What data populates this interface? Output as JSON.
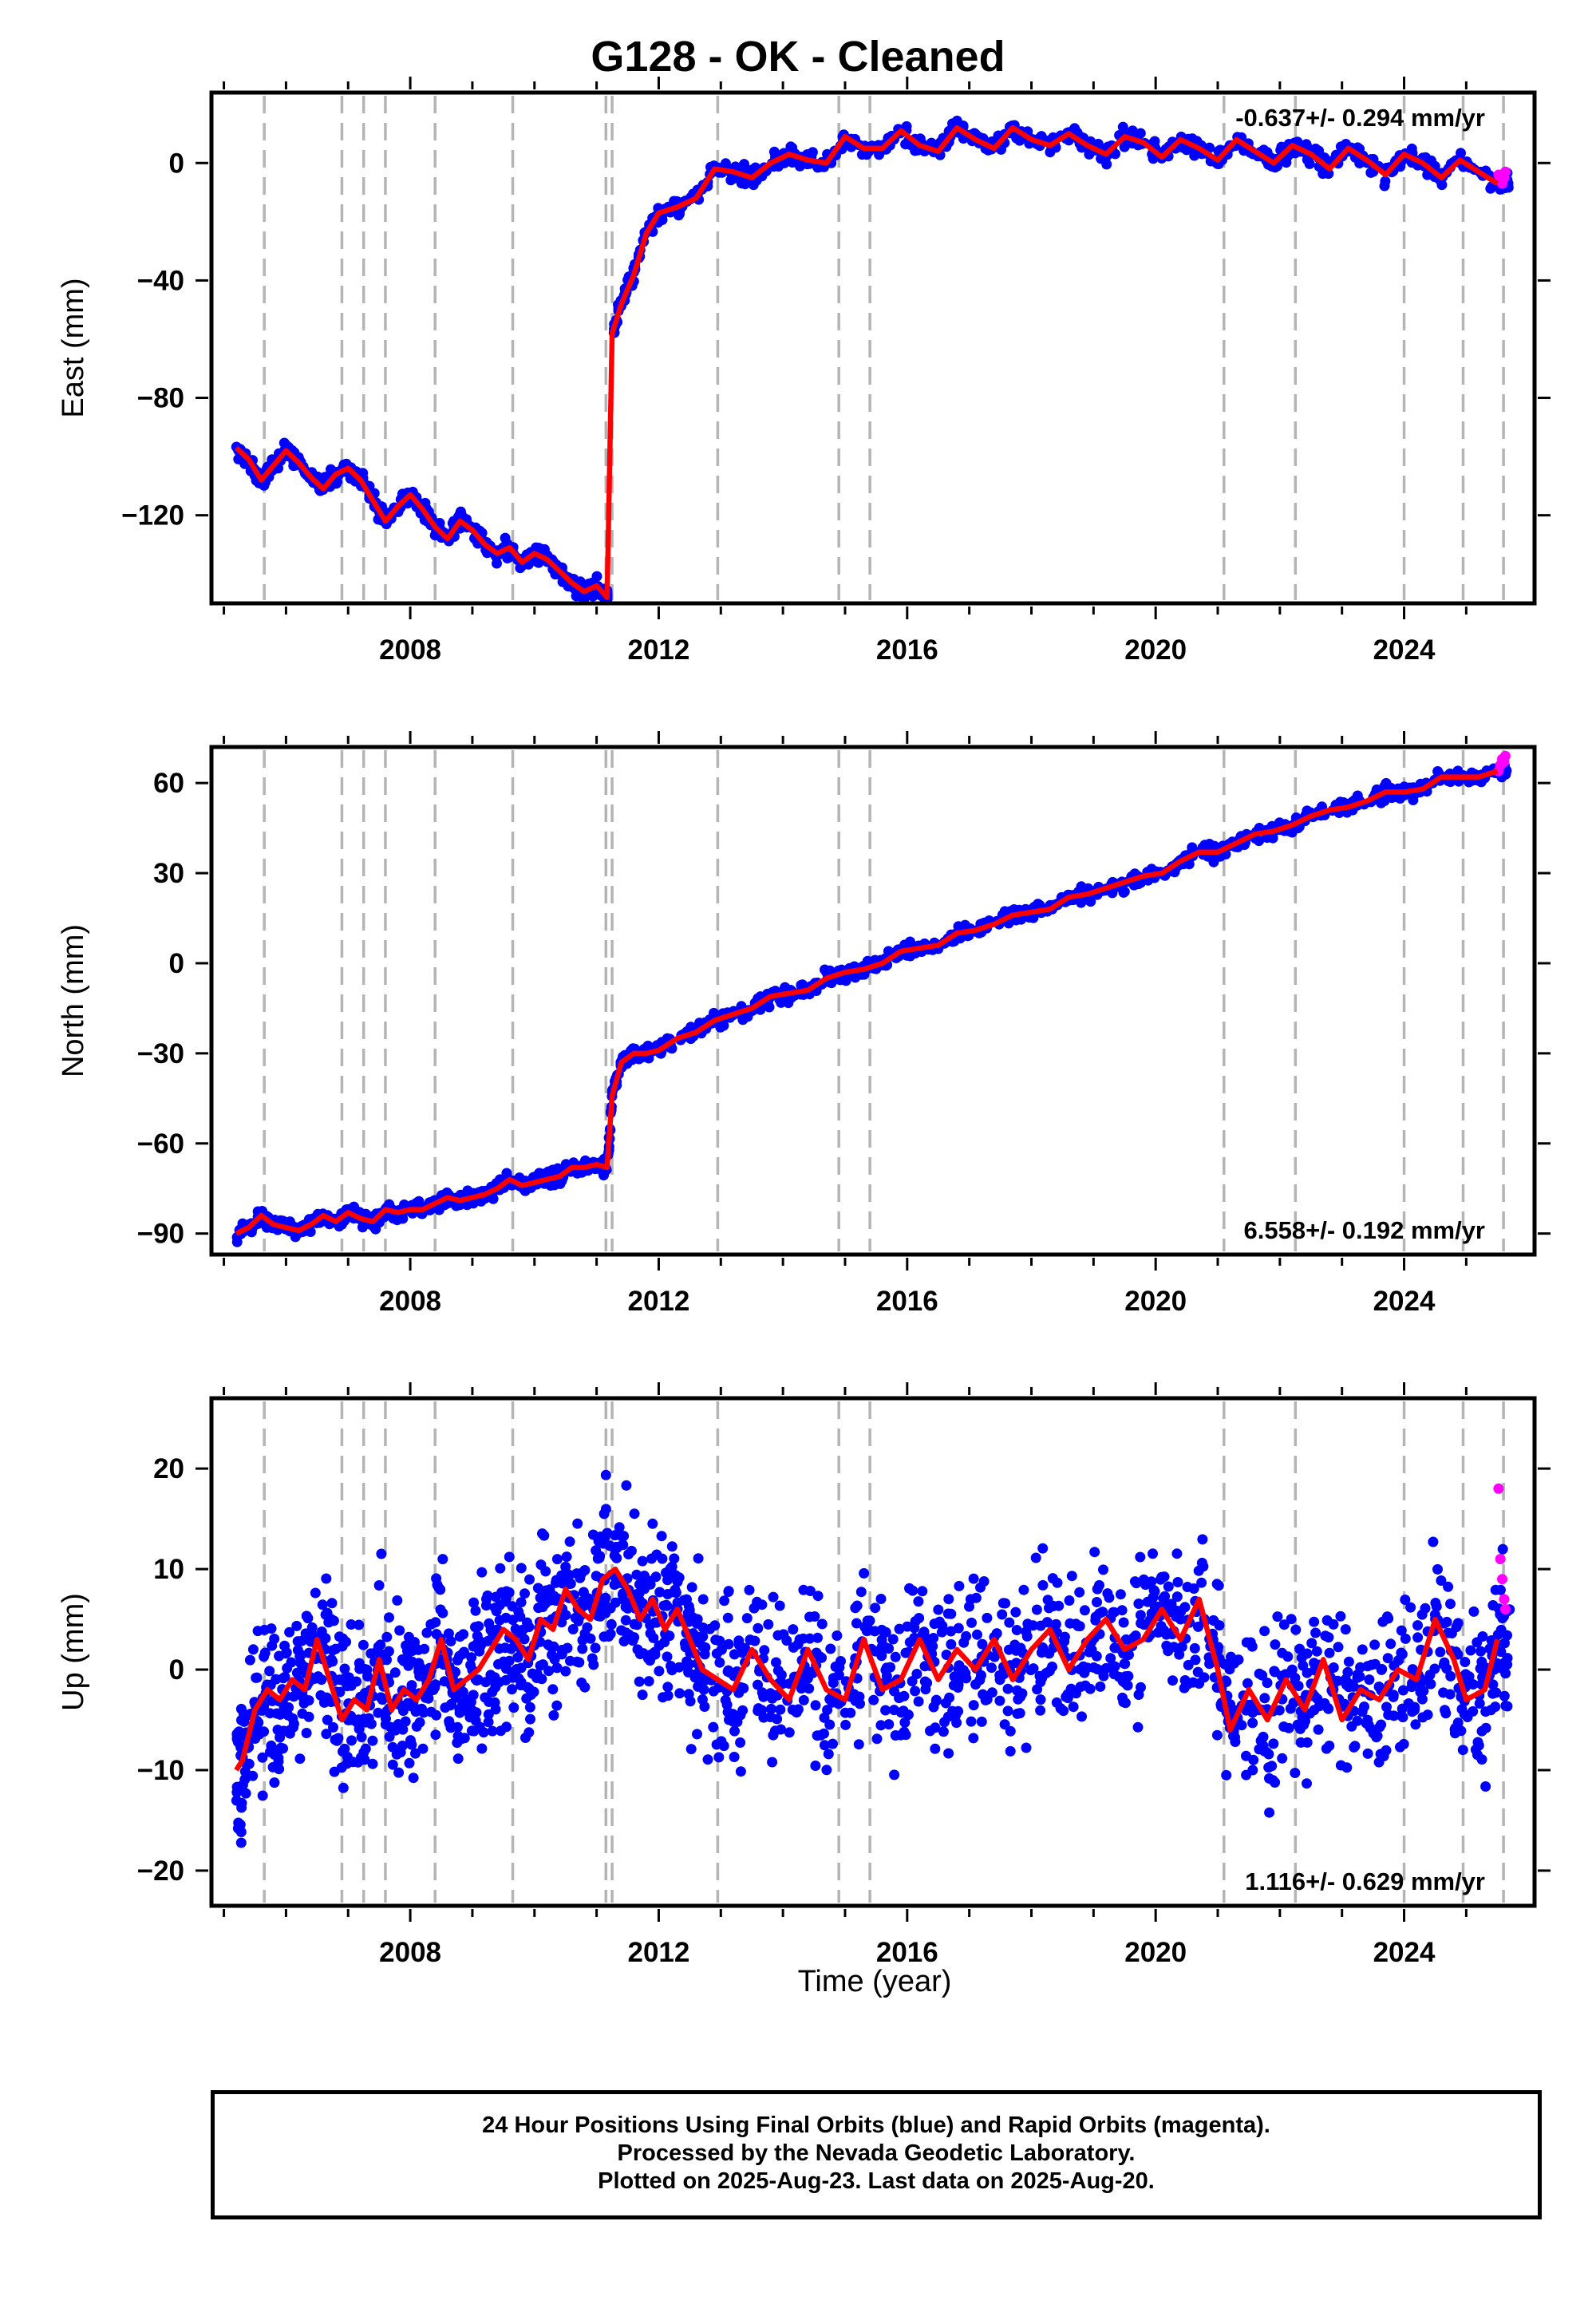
{
  "figure": {
    "title": "G128  - OK - Cleaned",
    "xlabel": "Time (year)",
    "footer": [
      "24 Hour Positions Using Final Orbits (blue) and Rapid Orbits (magenta).",
      "Processed by the Nevada Geodetic Laboratory.",
      "Plotted on 2025-Aug-23. Last data on 2025-Aug-20."
    ]
  },
  "colors": {
    "final_orbits": "#0000ff",
    "rapid_orbits": "#ff00ff",
    "model": "#ff0000",
    "event_lines": "#b4b4b4"
  },
  "chart_data": [
    {
      "type": "scatter",
      "panel": "east",
      "ylabel": "East (mm)",
      "rate_label": "-0.637+/- 0.294 mm/yr",
      "rate_position": "top-right",
      "xlim": [
        2004.8,
        2026.1
      ],
      "ylim": [
        -150,
        24
      ],
      "xticks": [
        2008,
        2012,
        2016,
        2020,
        2024
      ],
      "yticks": [
        0,
        -40,
        -80,
        -120
      ],
      "event_lines": [
        2005.65,
        2006.9,
        2007.25,
        2007.6,
        2008.4,
        2009.65,
        2011.15,
        2011.25,
        2012.95,
        2014.9,
        2015.4,
        2021.1,
        2022.25,
        2024.0,
        2024.95,
        2025.6
      ],
      "series": [
        {
          "name": "Final Orbits",
          "color": "blue",
          "x": [
            2005.2,
            2005.4,
            2005.6,
            2005.8,
            2006.0,
            2006.2,
            2006.4,
            2006.6,
            2006.8,
            2007.0,
            2007.2,
            2007.4,
            2007.6,
            2007.8,
            2008.0,
            2008.2,
            2008.4,
            2008.6,
            2008.8,
            2009.0,
            2009.2,
            2009.4,
            2009.6,
            2009.8,
            2010.0,
            2010.2,
            2010.4,
            2010.6,
            2010.8,
            2011.0,
            2011.17,
            2011.25,
            2011.4,
            2011.6,
            2011.8,
            2012.0,
            2012.3,
            2012.6,
            2012.9,
            2013.2,
            2013.5,
            2013.8,
            2014.1,
            2014.4,
            2014.7,
            2015.0,
            2015.3,
            2015.6,
            2015.9,
            2016.2,
            2016.5,
            2016.8,
            2017.1,
            2017.4,
            2017.7,
            2018.0,
            2018.3,
            2018.6,
            2018.9,
            2019.2,
            2019.5,
            2019.8,
            2020.1,
            2020.4,
            2020.7,
            2021.0,
            2021.3,
            2021.6,
            2021.9,
            2022.2,
            2022.5,
            2022.8,
            2023.1,
            2023.4,
            2023.7,
            2024.0,
            2024.3,
            2024.6,
            2024.9,
            2025.2,
            2025.5
          ],
          "y": [
            -97,
            -101,
            -108,
            -103,
            -98,
            -102,
            -107,
            -111,
            -106,
            -104,
            -108,
            -115,
            -122,
            -117,
            -113,
            -118,
            -124,
            -128,
            -122,
            -125,
            -130,
            -133,
            -131,
            -136,
            -133,
            -135,
            -139,
            -143,
            -146,
            -144,
            -148,
            -58,
            -48,
            -38,
            -24,
            -17,
            -15,
            -12,
            -2,
            -3,
            -5,
            0,
            3,
            1,
            0,
            9,
            5,
            5,
            11,
            6,
            4,
            12,
            8,
            5,
            12,
            8,
            6,
            10,
            6,
            3,
            9,
            7,
            2,
            8,
            5,
            1,
            8,
            4,
            0,
            6,
            3,
            -2,
            5,
            1,
            -4,
            3,
            0,
            -5,
            1,
            -3,
            -7
          ]
        },
        {
          "name": "Rapid Orbits",
          "color": "magenta",
          "x": [
            2025.52,
            2025.55,
            2025.58,
            2025.61,
            2025.63
          ],
          "y": [
            -4,
            -6,
            -7,
            -5,
            -3
          ]
        }
      ]
    },
    {
      "type": "scatter",
      "panel": "north",
      "ylabel": "North (mm)",
      "rate_label": "6.558+/- 0.192 mm/yr",
      "rate_position": "bottom-right",
      "xlim": [
        2004.8,
        2026.1
      ],
      "ylim": [
        -97,
        72
      ],
      "xticks": [
        2008,
        2012,
        2016,
        2020,
        2024
      ],
      "yticks": [
        60,
        30,
        0,
        -30,
        -60,
        -90
      ],
      "event_lines": [
        2005.65,
        2006.9,
        2007.25,
        2007.6,
        2008.4,
        2009.65,
        2011.15,
        2011.25,
        2012.95,
        2014.9,
        2015.4,
        2021.1,
        2022.25,
        2024.0,
        2024.95,
        2025.6
      ],
      "series": [
        {
          "name": "Final Orbits",
          "color": "blue",
          "x": [
            2005.2,
            2005.4,
            2005.6,
            2005.8,
            2006.0,
            2006.2,
            2006.4,
            2006.6,
            2006.8,
            2007.0,
            2007.2,
            2007.4,
            2007.6,
            2007.8,
            2008.0,
            2008.2,
            2008.4,
            2008.6,
            2008.8,
            2009.0,
            2009.2,
            2009.4,
            2009.6,
            2009.8,
            2010.0,
            2010.2,
            2010.4,
            2010.6,
            2010.8,
            2011.0,
            2011.17,
            2011.25,
            2011.4,
            2011.6,
            2011.8,
            2012.0,
            2012.3,
            2012.6,
            2012.9,
            2013.2,
            2013.5,
            2013.8,
            2014.1,
            2014.4,
            2014.7,
            2015.0,
            2015.3,
            2015.6,
            2015.9,
            2016.2,
            2016.5,
            2016.8,
            2017.1,
            2017.4,
            2017.7,
            2018.0,
            2018.3,
            2018.6,
            2018.9,
            2019.2,
            2019.5,
            2019.8,
            2020.1,
            2020.4,
            2020.7,
            2021.0,
            2021.3,
            2021.6,
            2021.9,
            2022.2,
            2022.5,
            2022.8,
            2023.1,
            2023.4,
            2023.7,
            2024.0,
            2024.3,
            2024.6,
            2024.9,
            2025.2,
            2025.5
          ],
          "y": [
            -90,
            -88,
            -84,
            -87,
            -88,
            -89,
            -87,
            -84,
            -86,
            -83,
            -85,
            -86,
            -82,
            -83,
            -82,
            -82,
            -80,
            -78,
            -79,
            -78,
            -77,
            -75,
            -72,
            -74,
            -73,
            -72,
            -71,
            -68,
            -68,
            -67,
            -68,
            -44,
            -33,
            -30,
            -30,
            -29,
            -25,
            -23,
            -19,
            -17,
            -15,
            -11,
            -10,
            -9,
            -5,
            -3,
            -2,
            0,
            4,
            5,
            6,
            10,
            11,
            13,
            16,
            17,
            18,
            22,
            23,
            25,
            27,
            29,
            30,
            34,
            37,
            37,
            40,
            43,
            44,
            46,
            49,
            51,
            52,
            54,
            57,
            57,
            58,
            62,
            62,
            62,
            64
          ]
        },
        {
          "name": "Rapid Orbits",
          "color": "magenta",
          "x": [
            2025.52,
            2025.55,
            2025.58,
            2025.61,
            2025.63
          ],
          "y": [
            64,
            66,
            68,
            67,
            69
          ]
        }
      ]
    },
    {
      "type": "scatter",
      "panel": "up",
      "ylabel": "Up (mm)",
      "rate_label": "1.116+/- 0.629 mm/yr",
      "rate_position": "bottom-right",
      "xlim": [
        2004.8,
        2026.1
      ],
      "ylim": [
        -23.5,
        27
      ],
      "xticks": [
        2008,
        2012,
        2016,
        2020,
        2024
      ],
      "yticks": [
        20,
        10,
        0,
        -10,
        -20
      ],
      "event_lines": [
        2005.65,
        2006.9,
        2007.25,
        2007.6,
        2008.4,
        2009.65,
        2011.15,
        2011.25,
        2012.95,
        2014.9,
        2015.4,
        2021.1,
        2022.25,
        2024.0,
        2024.95,
        2025.6
      ],
      "series": [
        {
          "name": "Final Orbits",
          "color": "blue",
          "x": [
            2005.2,
            2005.3,
            2005.5,
            2005.7,
            2005.9,
            2006.1,
            2006.3,
            2006.5,
            2006.7,
            2006.9,
            2007.1,
            2007.3,
            2007.5,
            2007.7,
            2007.9,
            2008.1,
            2008.3,
            2008.5,
            2008.7,
            2008.9,
            2009.1,
            2009.3,
            2009.5,
            2009.7,
            2009.9,
            2010.1,
            2010.3,
            2010.5,
            2010.7,
            2010.9,
            2011.1,
            2011.3,
            2011.5,
            2011.7,
            2011.9,
            2012.1,
            2012.3,
            2012.5,
            2012.7,
            2012.95,
            2013.2,
            2013.5,
            2013.8,
            2014.1,
            2014.4,
            2014.7,
            2015.0,
            2015.3,
            2015.6,
            2015.9,
            2016.2,
            2016.5,
            2016.8,
            2017.1,
            2017.4,
            2017.7,
            2018.0,
            2018.3,
            2018.6,
            2018.9,
            2019.2,
            2019.5,
            2019.8,
            2020.1,
            2020.4,
            2020.7,
            2021.0,
            2021.2,
            2021.5,
            2021.8,
            2022.1,
            2022.4,
            2022.7,
            2023.0,
            2023.3,
            2023.6,
            2023.9,
            2024.2,
            2024.5,
            2024.8,
            2025.0,
            2025.3,
            2025.5
          ],
          "y": [
            -10,
            -9,
            -4,
            -2,
            -3,
            -1,
            -2,
            3,
            -1,
            -5,
            -3,
            -4,
            1,
            -4,
            -2,
            -3,
            -1,
            3,
            -2,
            -1,
            0,
            2,
            4,
            3,
            1,
            5,
            4,
            8,
            6,
            5,
            9,
            10,
            8,
            5,
            7,
            4,
            6,
            3,
            0,
            -1,
            -2,
            2,
            -1,
            -3,
            2,
            -2,
            -3,
            3,
            -2,
            -1,
            3,
            -1,
            2,
            0,
            3,
            -1,
            2,
            4,
            0,
            3,
            5,
            2,
            3,
            6,
            3,
            7,
            0,
            -6,
            -2,
            -5,
            -1,
            -4,
            1,
            -5,
            -2,
            -3,
            0,
            -1,
            5,
            1,
            -3,
            -2,
            3
          ]
        },
        {
          "name": "Rapid Orbits",
          "color": "magenta",
          "x": [
            2025.52,
            2025.55,
            2025.58,
            2025.61,
            2025.63
          ],
          "y": [
            18,
            11,
            9,
            7,
            6
          ]
        }
      ]
    }
  ]
}
